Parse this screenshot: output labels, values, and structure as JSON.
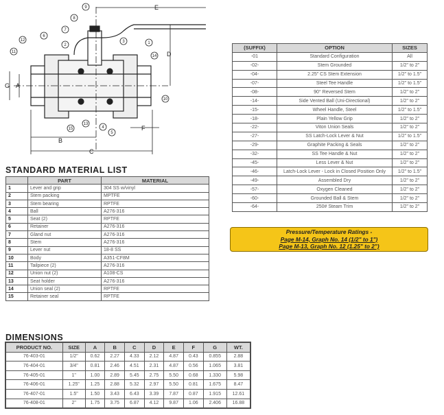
{
  "diagram": {
    "callouts": [
      "1",
      "2",
      "3",
      "4",
      "5",
      "6",
      "7",
      "8",
      "9",
      "10",
      "11",
      "12",
      "13",
      "14",
      "15"
    ],
    "dimension_letters": [
      "A",
      "B",
      "C",
      "D",
      "E",
      "F",
      "G"
    ]
  },
  "material_list": {
    "title": "STANDARD MATERIAL LIST",
    "headers": [
      "",
      "PART",
      "MATERIAL"
    ],
    "rows": [
      [
        "1",
        "Lever and grip",
        "304 SS w/vinyl"
      ],
      [
        "2",
        "Stem packing",
        "MPTFE"
      ],
      [
        "3",
        "Stem bearing",
        "RPTFE"
      ],
      [
        "4",
        "Ball",
        "A276-316"
      ],
      [
        "5",
        "Seat  (2)",
        "RPTFE"
      ],
      [
        "6",
        "Retainer",
        "A276-316"
      ],
      [
        "7",
        "Gland nut",
        "A276-316"
      ],
      [
        "8",
        "Stem",
        "A276-316"
      ],
      [
        "9",
        "Lever nut",
        "18-8 SS"
      ],
      [
        "10",
        "Body",
        "A351-CF8M"
      ],
      [
        "11",
        "Tailpiece  (2)",
        "A276-316"
      ],
      [
        "12",
        "Union nut  (2)",
        "A108-CS"
      ],
      [
        "13",
        "Seat holder",
        "A276-316"
      ],
      [
        "14",
        "Union seal  (2)",
        "RPTFE"
      ],
      [
        "15",
        "Retainer seal",
        "RPTFE"
      ]
    ]
  },
  "dimensions": {
    "title": "DIMENSIONS",
    "headers": [
      "PRODUCT NO.",
      "SIZE",
      "A",
      "B",
      "C",
      "D",
      "E",
      "F",
      "G",
      "WT."
    ],
    "rows": [
      [
        "76-403-01",
        "1/2\"",
        "0.62",
        "2.27",
        "4.33",
        "2.12",
        "4.87",
        "0.43",
        "0.855",
        "2.88"
      ],
      [
        "76-404-01",
        "3/4\"",
        "0.81",
        "2.46",
        "4.51",
        "2.31",
        "4.87",
        "0.56",
        "1.065",
        "3.81"
      ],
      [
        "76-405-01",
        "1\"",
        "1.00",
        "2.89",
        "5.45",
        "2.75",
        "5.50",
        "0.68",
        "1.330",
        "5.98"
      ],
      [
        "76-406-01",
        "1.25\"",
        "1.25",
        "2.88",
        "5.32",
        "2.97",
        "5.50",
        "0.81",
        "1.675",
        "8.47"
      ],
      [
        "76-407-01",
        "1.5\"",
        "1.50",
        "3.43",
        "6.43",
        "3.39",
        "7.87",
        "0.87",
        "1.915",
        "12.61"
      ],
      [
        "76-408-01",
        "2\"",
        "1.75",
        "3.75",
        "6.87",
        "4.12",
        "9.87",
        "1.06",
        "2.406",
        "16.88"
      ]
    ]
  },
  "options": {
    "headers": [
      "(SUFFIX)",
      "OPTION",
      "SIZES"
    ],
    "rows": [
      [
        "-01",
        "Standard Configuration",
        "All"
      ],
      [
        "-02-",
        "Stem Grounded",
        "1/2\" to 2\""
      ],
      [
        "-04-",
        "2.25\" CS Stem Extension",
        "1/2\" to 1.5\""
      ],
      [
        "-07-",
        "Steel Tee Handle",
        "1/2\" to 1.5\""
      ],
      [
        "-08-",
        "90° Reversed Stem",
        "1/2\" to 2\""
      ],
      [
        "-14-",
        "Side Vented Ball (Uni-Directional)",
        "1/2\" to 2\""
      ],
      [
        "-15-",
        "Wheel Handle, Steel",
        "1/2\" to 1.5\""
      ],
      [
        "-18-",
        "Plain Yellow Grip",
        "1/2\" to 2\""
      ],
      [
        "-22-",
        "Viton Union Seals",
        "1/2\" to 2\""
      ],
      [
        "-27-",
        "SS Latch-Lock Lever & Nut",
        "1/2\" to 1.5\""
      ],
      [
        "-29-",
        "Graphite Packing & Seals",
        "1/2\" to 2\""
      ],
      [
        "-32-",
        "SS Tee Handle & Nut",
        "1/2\" to 2\""
      ],
      [
        "-45-",
        "Less Lever & Nut",
        "1/2\" to 2\""
      ],
      [
        "-46-",
        "Latch-Lock Lever - Lock in Closed Position Only",
        "1/2\" to 1.5\""
      ],
      [
        "-49-",
        "Assembled Dry",
        "1/2\" to 2\""
      ],
      [
        "-57-",
        "Oxygen Cleaned",
        "1/2\" to 2\""
      ],
      [
        "-60-",
        "Grounded Ball & Stem",
        "1/2\" to 2\""
      ],
      [
        "-64-",
        "250# Steam Trim",
        "1/2\" to 2\""
      ]
    ]
  },
  "ratings_note": {
    "line1": "Pressure/Temperature Ratings -",
    "line2": "Page M-14, Graph No. 14 (1/2\" to 1\")",
    "line3": "Page M-13, Graph No. 12 (1.25\" to 2\")",
    "color": "#f5c518"
  }
}
